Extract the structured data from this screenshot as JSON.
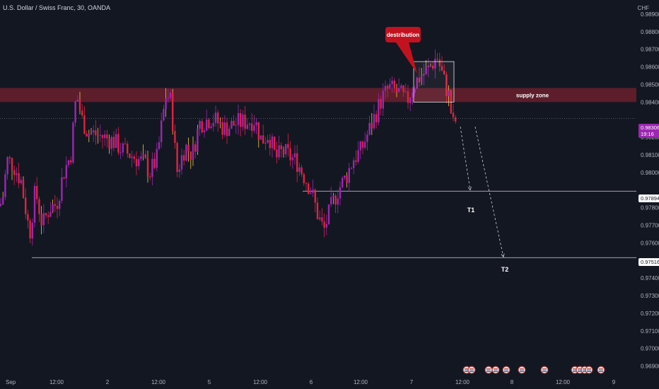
{
  "header": {
    "symbol_title": "U.S. Dollar / Swiss Franc, 30, OANDA",
    "currency": "CHF"
  },
  "price_tags": {
    "current_price": "0.98306",
    "countdown": "19:16",
    "t1_level": "0.97894",
    "t2_level": "0.97516"
  },
  "annotations": {
    "callout": "destribution",
    "zone_label": "supply zone",
    "target1": "T1",
    "target2": "T2"
  },
  "colors": {
    "background": "#131722",
    "candle_primary": "#e0223f",
    "candle_secondary": "#9c27b0",
    "wick_highlight": "#f5c542",
    "supply_zone": "#6b1e2c",
    "callout": "#c3121f",
    "current_price_tag": "#9c27b0"
  },
  "chart_data": {
    "type": "candlestick",
    "ylim": [
      0.9685,
      0.9898
    ],
    "y_ticks": [
      "0.98900",
      "0.98800",
      "0.98700",
      "0.98600",
      "0.98500",
      "0.98400",
      "0.98200",
      "0.98100",
      "0.98000",
      "0.97800",
      "0.97700",
      "0.97600",
      "0.97400",
      "0.97300",
      "0.97200",
      "0.97100",
      "0.97000",
      "0.96900"
    ],
    "x_ticks": [
      "Sep",
      "12:00",
      "2",
      "12:00",
      "5",
      "12:00",
      "6",
      "12:00",
      "7",
      "12:00",
      "8",
      "12:00",
      "9"
    ],
    "supply_zone": [
      0.984,
      0.9848
    ],
    "distribution_box": [
      0.984,
      0.9863
    ],
    "levels": [
      0.97894,
      0.97516
    ],
    "current_price": 0.98306,
    "path_key_points": [
      [
        0,
        0.9781
      ],
      [
        4,
        0.9786
      ],
      [
        10,
        0.9807
      ],
      [
        18,
        0.9805
      ],
      [
        30,
        0.9795
      ],
      [
        42,
        0.9765
      ],
      [
        50,
        0.979
      ],
      [
        60,
        0.977
      ],
      [
        70,
        0.978
      ],
      [
        80,
        0.9782
      ],
      [
        90,
        0.98
      ],
      [
        100,
        0.981
      ],
      [
        108,
        0.9845
      ],
      [
        116,
        0.983
      ],
      [
        124,
        0.9823
      ],
      [
        140,
        0.9821
      ],
      [
        160,
        0.9818
      ],
      [
        175,
        0.9812
      ],
      [
        185,
        0.981
      ],
      [
        205,
        0.9805
      ],
      [
        212,
        0.98
      ],
      [
        222,
        0.9808
      ],
      [
        235,
        0.9845
      ],
      [
        242,
        0.984
      ],
      [
        250,
        0.98
      ],
      [
        262,
        0.9815
      ],
      [
        272,
        0.981
      ],
      [
        282,
        0.9828
      ],
      [
        300,
        0.9831
      ],
      [
        318,
        0.9825
      ],
      [
        335,
        0.9828
      ],
      [
        350,
        0.9829
      ],
      [
        360,
        0.983
      ],
      [
        370,
        0.9818
      ],
      [
        380,
        0.9822
      ],
      [
        390,
        0.9808
      ],
      [
        400,
        0.9812
      ],
      [
        420,
        0.9806
      ],
      [
        440,
        0.979
      ],
      [
        450,
        0.9775
      ],
      [
        458,
        0.9767
      ],
      [
        468,
        0.978
      ],
      [
        478,
        0.979
      ],
      [
        490,
        0.9798
      ],
      [
        500,
        0.9808
      ],
      [
        510,
        0.9812
      ],
      [
        520,
        0.9822
      ],
      [
        530,
        0.9832
      ],
      [
        540,
        0.9842
      ],
      [
        550,
        0.9848
      ],
      [
        565,
        0.9845
      ],
      [
        575,
        0.984
      ],
      [
        585,
        0.985
      ],
      [
        595,
        0.9855
      ],
      [
        605,
        0.9858
      ],
      [
        618,
        0.9866
      ],
      [
        628,
        0.9852
      ],
      [
        636,
        0.9842
      ],
      [
        640,
        0.9826
      ],
      [
        646,
        0.9831
      ]
    ],
    "projection": [
      {
        "name": "T1",
        "from": [
          651,
          0.9826
        ],
        "to": [
          665,
          0.979
        ]
      },
      {
        "name": "T2",
        "from": [
          672,
          0.9826
        ],
        "to": [
          712,
          0.9752
        ]
      }
    ]
  }
}
